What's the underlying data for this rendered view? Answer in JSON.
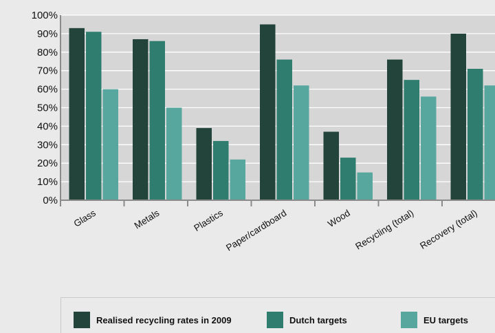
{
  "chart_data": {
    "type": "bar",
    "categories": [
      "Glass",
      "Metals",
      "Plastics",
      "Paper/cardboard",
      "Wood",
      "Recycling (total)",
      "Recovery (total)"
    ],
    "series": [
      {
        "name": "Realised recycling rates in 2009",
        "color": "#22443a",
        "values": [
          93,
          87,
          39,
          95,
          37,
          76,
          90
        ]
      },
      {
        "name": "Dutch targets",
        "color": "#2e7d6e",
        "values": [
          91,
          86,
          32,
          76,
          23,
          65,
          71
        ]
      },
      {
        "name": "EU targets",
        "color": "#58a79f",
        "values": [
          60,
          50,
          22,
          62,
          15,
          56,
          62
        ]
      }
    ],
    "ylim": [
      0,
      100
    ],
    "yticks": [
      "0%",
      "10%",
      "20%",
      "30%",
      "40%",
      "50%",
      "60%",
      "70%",
      "80%",
      "90%",
      "100%"
    ],
    "grid": true,
    "legend_position": "bottom",
    "plot_background": "#d6d6d6",
    "page_background": "#eaeaea"
  }
}
